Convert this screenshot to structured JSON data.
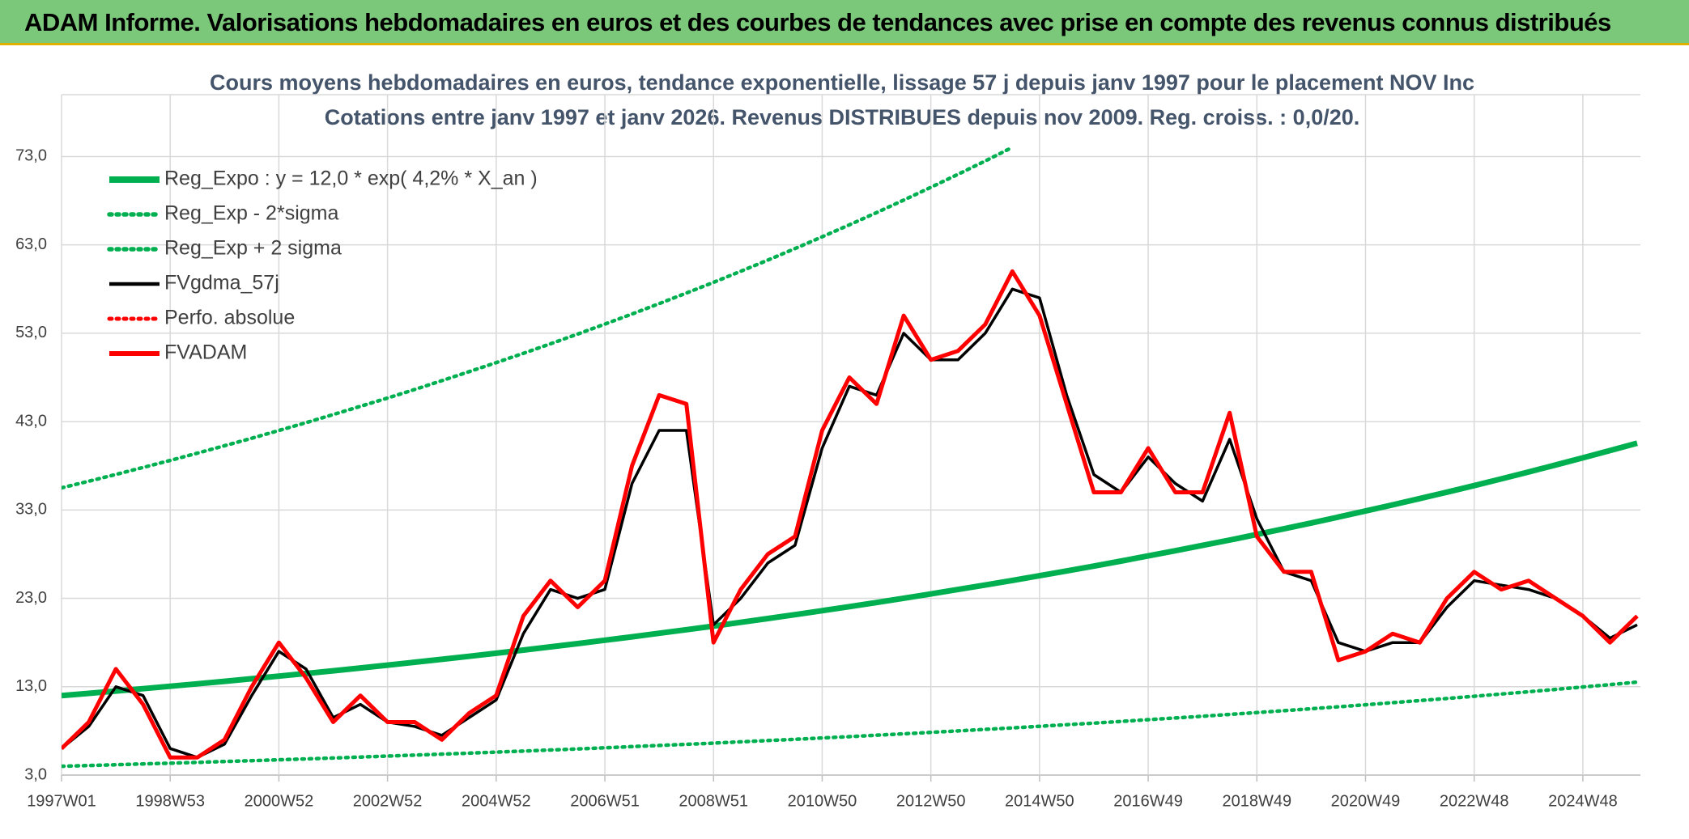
{
  "header": {
    "title": "ADAM Informe. Valorisations hebdomadaires en euros et des courbes de tendances avec prise en compte des revenus connus distribués"
  },
  "chart_data": {
    "type": "line",
    "title": "Cours moyens hebdomadaires en euros, tendance exponentielle, lissage 57 j depuis janv 1997 pour le placement NOV Inc",
    "subtitle": "Cotations entre janv 1997 et janv 2026. Revenus DISTRIBUES depuis nov 2009. Reg. croiss. : 0,0/20.",
    "categories": [
      "1997W01",
      null,
      null,
      null,
      "1998W53",
      null,
      null,
      null,
      "2000W52",
      null,
      null,
      null,
      "2002W52",
      null,
      null,
      null,
      "2004W52",
      null,
      null,
      null,
      "2006W51",
      null,
      null,
      null,
      "2008W51",
      null,
      null,
      null,
      "2010W50",
      null,
      null,
      null,
      "2012W50",
      null,
      null,
      null,
      "2014W50",
      null,
      null,
      null,
      "2016W49",
      null,
      null,
      null,
      "2018W49",
      null,
      null,
      null,
      "2020W49",
      null,
      null,
      null,
      "2022W48",
      null,
      null,
      null,
      "2024W48",
      null,
      null
    ],
    "ylim": [
      3,
      80
    ],
    "yticks": [
      {
        "value": 3,
        "label": "3,0"
      },
      {
        "value": 13,
        "label": "13,0"
      },
      {
        "value": 23,
        "label": "23,0"
      },
      {
        "value": 33,
        "label": "33,0"
      },
      {
        "value": 43,
        "label": "43,0"
      },
      {
        "value": 53,
        "label": "53,0"
      },
      {
        "value": 63,
        "label": "63,0"
      },
      {
        "value": 73,
        "label": "73,0"
      }
    ],
    "grid": true,
    "legend": "upper left",
    "series": [
      {
        "name": "Reg_Expo : y = 12,0 * exp( 4,2% *  X_an )",
        "color": "#00b050",
        "style": "solid",
        "values": [
          12.0,
          12.25,
          12.51,
          12.78,
          13.05,
          13.33,
          13.61,
          13.9,
          14.2,
          14.5,
          14.8,
          15.12,
          15.44,
          15.77,
          16.1,
          16.44,
          16.79,
          17.15,
          17.51,
          17.88,
          18.26,
          18.65,
          19.05,
          19.45,
          19.86,
          20.29,
          20.72,
          21.16,
          21.6,
          22.06,
          22.53,
          23.01,
          23.5,
          24.0,
          24.51,
          25.03,
          25.56,
          26.1,
          26.65,
          27.22,
          27.8,
          28.39,
          28.99,
          29.6,
          30.23,
          30.87,
          31.53,
          32.2,
          32.88,
          33.58,
          34.29,
          35.02,
          35.76,
          36.52,
          37.3,
          38.09,
          38.9,
          39.72,
          40.56
        ]
      },
      {
        "name": "Reg_Exp - 2*sigma",
        "color": "#00b050",
        "style": "dotted",
        "values": [
          4.0,
          4.08,
          4.17,
          4.26,
          4.35,
          4.44,
          4.54,
          4.63,
          4.73,
          4.83,
          4.93,
          5.04,
          5.15,
          5.26,
          5.37,
          5.48,
          5.6,
          5.72,
          5.84,
          5.96,
          6.09,
          6.22,
          6.35,
          6.48,
          6.62,
          6.76,
          6.91,
          7.05,
          7.2,
          7.35,
          7.51,
          7.67,
          7.83,
          8.0,
          8.17,
          8.34,
          8.52,
          8.7,
          8.88,
          9.07,
          9.27,
          9.46,
          9.66,
          9.87,
          10.08,
          10.29,
          10.51,
          10.73,
          10.96,
          11.19,
          11.43,
          11.67,
          11.92,
          12.17,
          12.43,
          12.7,
          12.97,
          13.24,
          13.52
        ]
      },
      {
        "name": "Reg_Exp + 2 sigma",
        "color": "#00b050",
        "style": "dotted",
        "values": [
          35.5,
          36.25,
          37.02,
          37.81,
          38.61,
          39.43,
          40.27,
          41.12,
          41.99,
          42.88,
          43.8,
          44.73,
          45.67,
          46.64,
          47.63,
          48.65,
          49.68,
          50.73,
          51.81,
          52.91,
          54.03,
          55.18,
          56.35,
          57.55,
          58.76,
          60.01,
          61.28,
          62.59,
          63.91,
          65.27,
          66.65,
          68.07,
          69.52,
          70.99,
          72.49,
          74.04,
          null,
          null,
          null,
          null,
          null,
          null,
          null,
          null,
          null,
          null,
          null,
          null,
          null,
          null,
          null,
          null,
          null,
          null,
          null,
          null,
          null,
          null,
          null
        ]
      },
      {
        "name": "FVgdma_57j",
        "color": "#000000",
        "style": "solid",
        "values": [
          6,
          8.5,
          13,
          12,
          6,
          5,
          6.5,
          12,
          17,
          15,
          9.5,
          11,
          9,
          8.5,
          7.5,
          9.5,
          11.5,
          19,
          24,
          23,
          24,
          36,
          42,
          42,
          20,
          23,
          27,
          29,
          40,
          47,
          46,
          53,
          50,
          50,
          53,
          58,
          57,
          46,
          37,
          35,
          39,
          36,
          34,
          41,
          32,
          26,
          25,
          18,
          17,
          18,
          18,
          22,
          25,
          24.5,
          24,
          23,
          21,
          18.5,
          20
        ]
      },
      {
        "name": "Perfo. absolue",
        "color": "#ff0000",
        "style": "dotted",
        "values": [
          null,
          null,
          null,
          null,
          null,
          null,
          null,
          null,
          null,
          null,
          null,
          null,
          null,
          null,
          null,
          null,
          null,
          null,
          null,
          null,
          null,
          null,
          null,
          null,
          null,
          null,
          null,
          null,
          null,
          null,
          null,
          null,
          null,
          null,
          null,
          null,
          null,
          null,
          null,
          null,
          null,
          null,
          null,
          null,
          null,
          null,
          null,
          null,
          null,
          null,
          null,
          null,
          null,
          null,
          null,
          null,
          null,
          null,
          null
        ]
      },
      {
        "name": "FVADAM",
        "color": "#ff0000",
        "style": "solid",
        "values": [
          6,
          9,
          15,
          11,
          5,
          5,
          7,
          13,
          18,
          14,
          9,
          12,
          9,
          9,
          7,
          10,
          12,
          21,
          25,
          22,
          25,
          38,
          46,
          45,
          18,
          24,
          28,
          30,
          42,
          48,
          45,
          55,
          50,
          51,
          54,
          60,
          55,
          45,
          35,
          35,
          40,
          35,
          35,
          44,
          30,
          26,
          26,
          16,
          17,
          19,
          18,
          23,
          26,
          24,
          25,
          23,
          21,
          18,
          21
        ]
      }
    ]
  }
}
